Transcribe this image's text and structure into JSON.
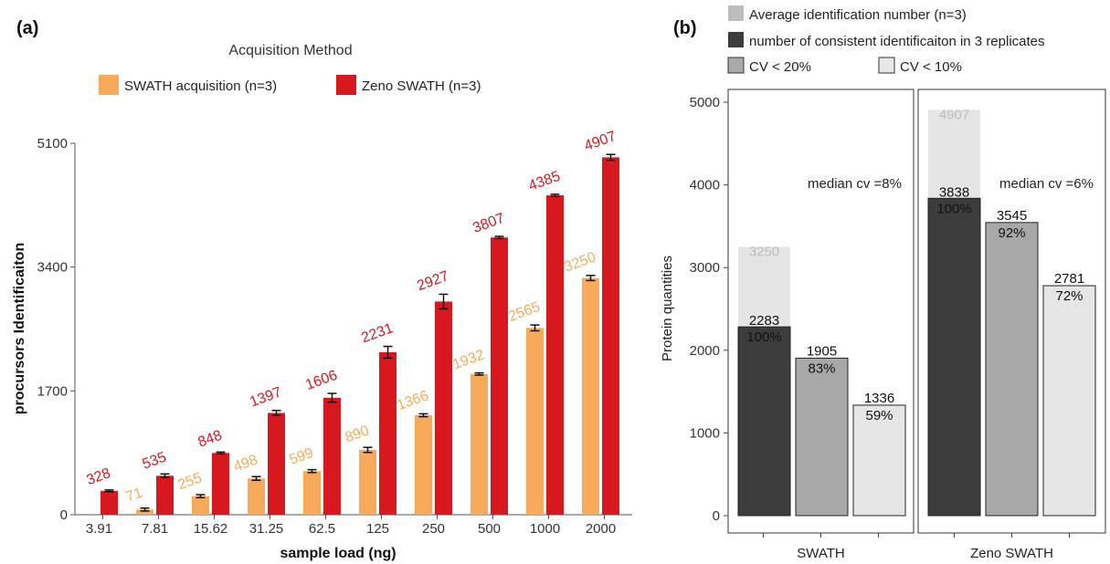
{
  "panel_a": {
    "panel_label": "(a)",
    "legend_title": "Acquisition Method",
    "chart_data": {
      "type": "bar",
      "categories": [
        "3.91",
        "7.81",
        "15.62",
        "31.25",
        "62.5",
        "125",
        "250",
        "500",
        "1000",
        "2000"
      ],
      "series": [
        {
          "name": "SWATH acquisition (n=3)",
          "values": [
            null,
            71,
            255,
            498,
            599,
            890,
            1366,
            1932,
            2565,
            3250
          ],
          "errors": [
            null,
            20,
            20,
            25,
            20,
            35,
            20,
            15,
            40,
            35
          ],
          "labels": [
            "",
            "71",
            "255",
            "498",
            "599",
            "890",
            "1366",
            "1932",
            "2565",
            "3250"
          ]
        },
        {
          "name": "Zeno SWATH (n=3)",
          "values": [
            328,
            535,
            848,
            1397,
            1606,
            2231,
            2927,
            3807,
            4385,
            4907
          ],
          "errors": [
            12,
            25,
            12,
            35,
            60,
            80,
            100,
            15,
            15,
            40
          ],
          "labels": [
            "328",
            "535",
            "848",
            "1397",
            "1606",
            "2231",
            "2927",
            "3807",
            "4385",
            "4907"
          ]
        }
      ],
      "colors": [
        "#F7AB5A",
        "#D7191F"
      ],
      "xlabel": "sample load (ng)",
      "ylabel": "procursors Identificaiton",
      "ylim": [
        0,
        5100
      ],
      "yticks": [
        "0",
        "1700",
        "3400",
        "5100"
      ],
      "grid": false,
      "legend_position": "top"
    }
  },
  "panel_b": {
    "panel_label": "(b)",
    "legend": [
      {
        "label": "Average identification number (n=3)",
        "color": "#BDBDBD"
      },
      {
        "label": "number of consistent identificaiton in 3 replicates",
        "color": "#3C3C3C"
      },
      {
        "label": "CV < 20%",
        "color": "#AAAAAA"
      },
      {
        "label": "CV < 10%",
        "color": "#E7E7E7"
      }
    ],
    "chart_data": {
      "type": "bar",
      "facets": [
        {
          "name": "SWATH",
          "average": 3250,
          "average_label": "3250",
          "bars": [
            {
              "value": 2283,
              "label": "2283",
              "pct": "100%"
            },
            {
              "value": 1905,
              "label": "1905",
              "pct": "83%"
            },
            {
              "value": 1336,
              "label": "1336",
              "pct": "59%"
            }
          ],
          "annotation": "median cv =8%"
        },
        {
          "name": "Zeno SWATH",
          "average": 4907,
          "average_label": "4907",
          "bars": [
            {
              "value": 3838,
              "label": "3838",
              "pct": "100%"
            },
            {
              "value": 3545,
              "label": "3545",
              "pct": "92%"
            },
            {
              "value": 2781,
              "label": "2781",
              "pct": "72%"
            }
          ],
          "annotation": "median cv =6%"
        }
      ],
      "bar_colors": [
        "#3C3C3C",
        "#A8A8A8",
        "#E6E6E6"
      ],
      "average_color": "#E5E5E5",
      "ylabel": "Protein quantities",
      "ylim": [
        0,
        5000
      ],
      "yticks": [
        "0",
        "1000",
        "2000",
        "3000",
        "4000",
        "5000"
      ]
    }
  }
}
